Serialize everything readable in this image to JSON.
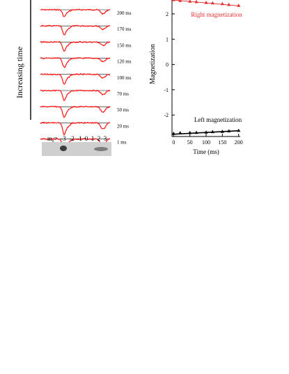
{
  "left_panel": {
    "axis_label": "Increasing time",
    "traces": [
      {
        "label": "200 ms",
        "amp_left": 9,
        "amp_right": 6
      },
      {
        "label": "170 ms",
        "amp_left": 12,
        "amp_right": 5
      },
      {
        "label": "150 ms",
        "amp_left": 12,
        "amp_right": 5
      },
      {
        "label": "120 ms",
        "amp_left": 12,
        "amp_right": 5
      },
      {
        "label": "100 ms",
        "amp_left": 13,
        "amp_right": 5
      },
      {
        "label": "70 ms",
        "amp_left": 13,
        "amp_right": 6
      },
      {
        "label": "50 ms",
        "amp_left": 14,
        "amp_right": 8
      },
      {
        "label": "20 ms",
        "amp_left": 15,
        "amp_right": 9
      },
      {
        "label": "1 ms",
        "amp_left": 18,
        "amp_right": 12
      }
    ],
    "ms_label": "m",
    "ms_subscript": "s",
    "ms_equals": "=",
    "ms_values": [
      "-3",
      "-2",
      "-1",
      "0",
      "1",
      "2",
      "3"
    ],
    "colors": {
      "trace": "#ff2020",
      "baseline": "#000000"
    }
  },
  "chart_data": {
    "type": "line",
    "xlabel": "Time (ms)",
    "ylabel": "Magnetization",
    "xlim": [
      -5,
      205
    ],
    "ylim": [
      -2.85,
      2.55
    ],
    "xticks": [
      0,
      50,
      100,
      150,
      200
    ],
    "yticks": [
      -2,
      -1,
      0,
      1,
      2
    ],
    "grid": false,
    "series": [
      {
        "name": "Right magnetization",
        "color": "#e03030",
        "marker": "triangle",
        "x": [
          0,
          20,
          50,
          70,
          100,
          120,
          150,
          170,
          200
        ],
        "y": [
          2.55,
          2.52,
          2.49,
          2.47,
          2.44,
          2.42,
          2.39,
          2.36,
          2.32
        ],
        "fit": [
          2.55,
          2.32
        ]
      },
      {
        "name": "Left magnetization",
        "color": "#000000",
        "marker": "triangle",
        "x": [
          0,
          20,
          50,
          70,
          100,
          120,
          150,
          170,
          200
        ],
        "y": [
          -2.74,
          -2.72,
          -2.71,
          -2.7,
          -2.69,
          -2.67,
          -2.66,
          -2.64,
          -2.62
        ],
        "fit": [
          -2.76,
          -2.62
        ]
      }
    ]
  }
}
